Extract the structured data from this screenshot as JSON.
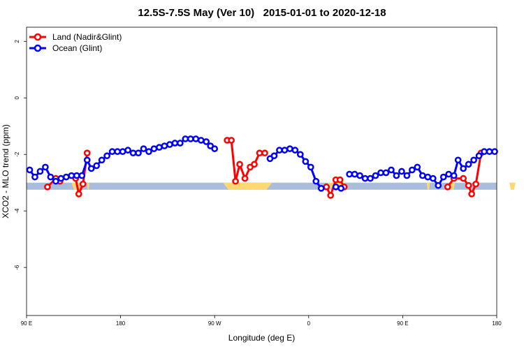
{
  "chart_data": {
    "type": "line",
    "title": "12.5S-7.5S May (Ver 10)   2015-01-01 to 2020-12-18",
    "xlabel": "Longitude (deg E)",
    "ylabel": "XCO2 - MLO trend (ppm)",
    "x_ticks": [
      {
        "value": 90,
        "label": "90 E"
      },
      {
        "value": 180,
        "label": "180"
      },
      {
        "value": 270,
        "label": "90 W"
      },
      {
        "value": 360,
        "label": "0"
      },
      {
        "value": 450,
        "label": "90 E"
      },
      {
        "value": 540,
        "label": "180"
      }
    ],
    "y_ticks": [
      2,
      0,
      -2,
      -4,
      -6
    ],
    "xlim": [
      90,
      540
    ],
    "ylim": [
      -7.7,
      2.5
    ],
    "legend_position": "top-left",
    "colors": {
      "land": "#ff0000",
      "ocean": "#0000ff",
      "band": "#a8bedc",
      "land_mask": "#ffd873"
    },
    "band": {
      "y_min": -3.25,
      "y_max": -3.0
    },
    "land_mask_segments": [
      {
        "x": [
          133,
          143
        ],
        "peak": 0.2
      },
      {
        "x": [
          148,
          150
        ],
        "peak": 0.1
      },
      {
        "x": [
          278,
          325
        ],
        "peak": 0.25
      },
      {
        "x": [
          378,
          395
        ],
        "peak": 0.12
      },
      {
        "x": [
          473,
          476
        ],
        "peak": 0.08
      },
      {
        "x": [
          495,
          500
        ],
        "peak": 0.12
      },
      {
        "x": [
          552,
          558
        ],
        "peak": 0.08
      }
    ],
    "series": [
      {
        "name": "Land (Nadir&Glint)",
        "color": "#ff0000",
        "segments": [
          [
            [
              110,
              -3.15
            ],
            [
              118,
              -2.85
            ],
            [
              122,
              -2.95
            ]
          ],
          [
            [
              137,
              -2.85
            ],
            [
              140,
              -3.4
            ],
            [
              144,
              -3.05
            ],
            [
              148,
              -1.95
            ]
          ],
          [
            [
              282,
              -1.5
            ],
            [
              286,
              -1.5
            ],
            [
              290,
              -2.95
            ],
            [
              294,
              -2.35
            ],
            [
              299,
              -2.85
            ],
            [
              304,
              -2.45
            ],
            [
              308,
              -2.35
            ],
            [
              313,
              -1.95
            ],
            [
              318,
              -1.95
            ]
          ],
          [
            [
              377,
              -3.15
            ],
            [
              381,
              -3.45
            ],
            [
              386,
              -2.9
            ],
            [
              390,
              -2.9
            ],
            [
              394,
              -3.15
            ]
          ],
          [
            [
              493,
              -3.15
            ],
            [
              499,
              -2.85
            ],
            [
              508,
              -2.85
            ],
            [
              513,
              -3.1
            ],
            [
              516,
              -3.4
            ],
            [
              520,
              -3.05
            ],
            [
              525,
              -1.95
            ]
          ]
        ]
      },
      {
        "name": "Ocean (Glint)",
        "color": "#0000ff",
        "segments": [
          [
            [
              93,
              -2.55
            ],
            [
              98,
              -2.8
            ],
            [
              103,
              -2.6
            ],
            [
              108,
              -2.45
            ],
            [
              113,
              -2.8
            ],
            [
              118,
              -2.95
            ],
            [
              123,
              -2.85
            ],
            [
              128,
              -2.8
            ],
            [
              133,
              -2.75
            ],
            [
              138,
              -2.75
            ],
            [
              143,
              -2.75
            ],
            [
              148,
              -2.2
            ],
            [
              152,
              -2.5
            ],
            [
              157,
              -2.4
            ],
            [
              162,
              -2.2
            ],
            [
              167,
              -2.05
            ],
            [
              172,
              -1.9
            ],
            [
              177,
              -1.9
            ],
            [
              182,
              -1.9
            ],
            [
              187,
              -1.85
            ],
            [
              192,
              -1.95
            ],
            [
              197,
              -1.95
            ],
            [
              202,
              -1.8
            ],
            [
              207,
              -1.9
            ],
            [
              212,
              -1.8
            ],
            [
              217,
              -1.75
            ],
            [
              222,
              -1.7
            ],
            [
              227,
              -1.65
            ],
            [
              232,
              -1.6
            ],
            [
              237,
              -1.6
            ],
            [
              242,
              -1.45
            ],
            [
              247,
              -1.45
            ],
            [
              252,
              -1.45
            ],
            [
              257,
              -1.5
            ],
            [
              262,
              -1.55
            ],
            [
              266,
              -1.7
            ],
            [
              270,
              -1.8
            ]
          ],
          [
            [
              323,
              -2.15
            ],
            [
              327,
              -2.05
            ],
            [
              332,
              -1.85
            ],
            [
              337,
              -1.85
            ],
            [
              342,
              -1.8
            ],
            [
              347,
              -1.85
            ],
            [
              352,
              -2.0
            ],
            [
              357,
              -2.25
            ],
            [
              362,
              -2.45
            ],
            [
              367,
              -2.95
            ],
            [
              372,
              -3.2
            ]
          ],
          [
            [
              386,
              -3.15
            ],
            [
              391,
              -3.2
            ]
          ],
          [
            [
              399,
              -2.7
            ],
            [
              404,
              -2.7
            ],
            [
              409,
              -2.75
            ],
            [
              414,
              -2.85
            ],
            [
              419,
              -2.85
            ],
            [
              424,
              -2.75
            ],
            [
              429,
              -2.65
            ],
            [
              434,
              -2.65
            ],
            [
              439,
              -2.55
            ],
            [
              444,
              -2.75
            ],
            [
              449,
              -2.6
            ],
            [
              454,
              -2.75
            ],
            [
              459,
              -2.55
            ],
            [
              464,
              -2.45
            ],
            [
              469,
              -2.75
            ],
            [
              474,
              -2.8
            ],
            [
              479,
              -2.85
            ],
            [
              484,
              -3.1
            ],
            [
              489,
              -2.8
            ],
            [
              494,
              -2.7
            ],
            [
              499,
              -2.75
            ],
            [
              503,
              -2.2
            ],
            [
              508,
              -2.5
            ],
            [
              513,
              -2.35
            ],
            [
              518,
              -2.2
            ],
            [
              523,
              -2.05
            ],
            [
              528,
              -1.9
            ],
            [
              533,
              -1.9
            ],
            [
              538,
              -1.9
            ]
          ]
        ]
      }
    ]
  }
}
